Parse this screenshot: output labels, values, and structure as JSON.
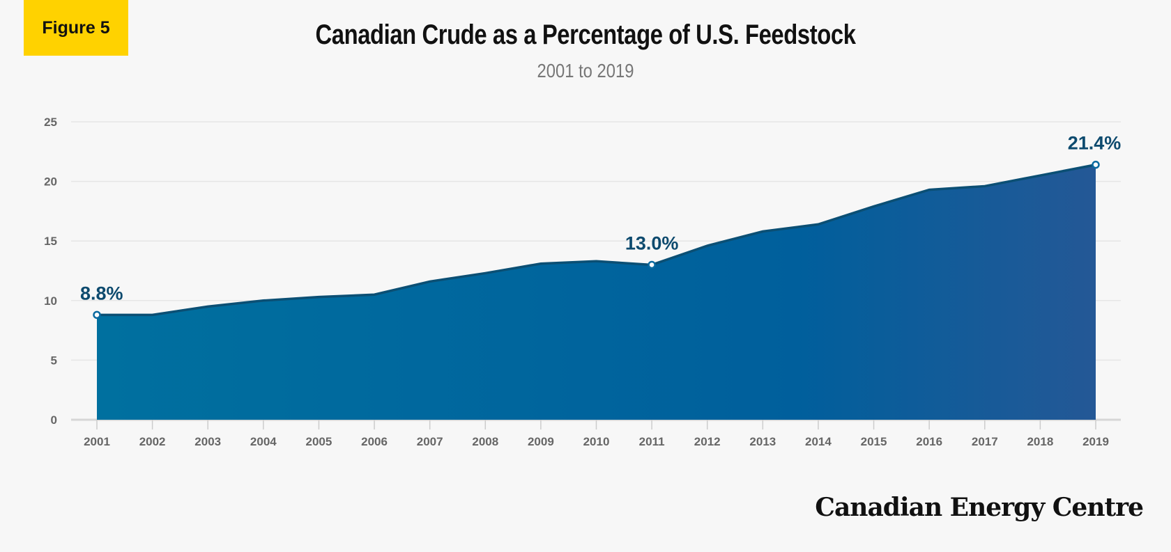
{
  "badge": "Figure 5",
  "logo": "Canadian Energy Centre",
  "colors": {
    "fill_start": "#00709f",
    "fill_end": "#245896",
    "line": "#0b4f74",
    "label": "#0d4a6e",
    "badge": "#ffd200"
  },
  "chart_data": {
    "type": "area",
    "title": "Canadian  Crude as a Percentage of U.S. Feedstock",
    "subtitle": "2001 to 2019",
    "xlabel": "",
    "ylabel": "",
    "categories": [
      "2001",
      "2002",
      "2003",
      "2004",
      "2005",
      "2006",
      "2007",
      "2008",
      "2009",
      "2010",
      "2011",
      "2012",
      "2013",
      "2014",
      "2015",
      "2016",
      "2017",
      "2018",
      "2019"
    ],
    "values": [
      8.8,
      8.8,
      9.5,
      10.0,
      10.3,
      10.5,
      11.6,
      12.3,
      13.1,
      13.3,
      13.0,
      14.6,
      15.8,
      16.4,
      17.9,
      19.3,
      19.6,
      20.5,
      21.4
    ],
    "ylim": [
      0,
      25
    ],
    "yticks": [
      "0",
      "5",
      "10",
      "15",
      "20",
      "25"
    ],
    "grid": true,
    "annotations": [
      {
        "category": "2001",
        "label": "8.8%"
      },
      {
        "category": "2011",
        "label": "13.0%"
      },
      {
        "category": "2019",
        "label": "21.4%"
      }
    ]
  }
}
